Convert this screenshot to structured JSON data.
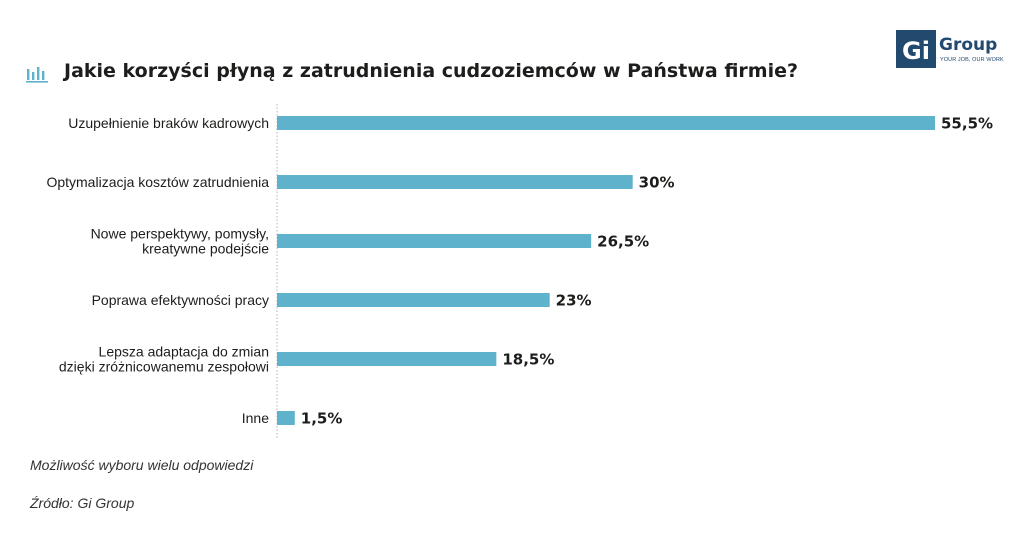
{
  "header": {
    "title": "Jakie korzyści płyną z zatrudnienia cudzoziemców w Państwa firmie?",
    "title_icon": "bar-chart-icon"
  },
  "logo": {
    "name": "Group",
    "mark": "Gi",
    "tagline": "YOUR JOB, OUR WORK"
  },
  "chart_data": {
    "type": "bar",
    "orientation": "horizontal",
    "title": "Jakie korzyści płyną z zatrudnienia cudzoziemców w Państwa firmie?",
    "categories": [
      [
        "Uzupełnienie braków kadrowych"
      ],
      [
        "Optymalizacja kosztów zatrudnienia"
      ],
      [
        "Nowe perspektywy, pomysły,",
        "kreatywne podejście"
      ],
      [
        "Poprawa efektywności pracy"
      ],
      [
        "Lepsza adaptacja do zmian",
        "dzięki zróżnicowanemu zespołowi"
      ],
      [
        "Inne"
      ]
    ],
    "values": [
      55.5,
      30,
      26.5,
      23,
      18.5,
      1.5
    ],
    "value_labels": [
      "55,5%",
      "30%",
      "26,5%",
      "23%",
      "18,5%",
      "1,5%"
    ],
    "unit": "%",
    "xlim": [
      0,
      55.5
    ],
    "grid": false,
    "legend": "none",
    "bar_color": "#5eb2cc"
  },
  "notes": {
    "choice": "Możliwość wyboru wielu odpowiedzi",
    "source": "Źródło: Gi Group"
  },
  "colors": {
    "bar": "#5eb2cc",
    "brand": "#214a6e",
    "text": "#1d1d1b",
    "axis": "#b5b5b5"
  }
}
